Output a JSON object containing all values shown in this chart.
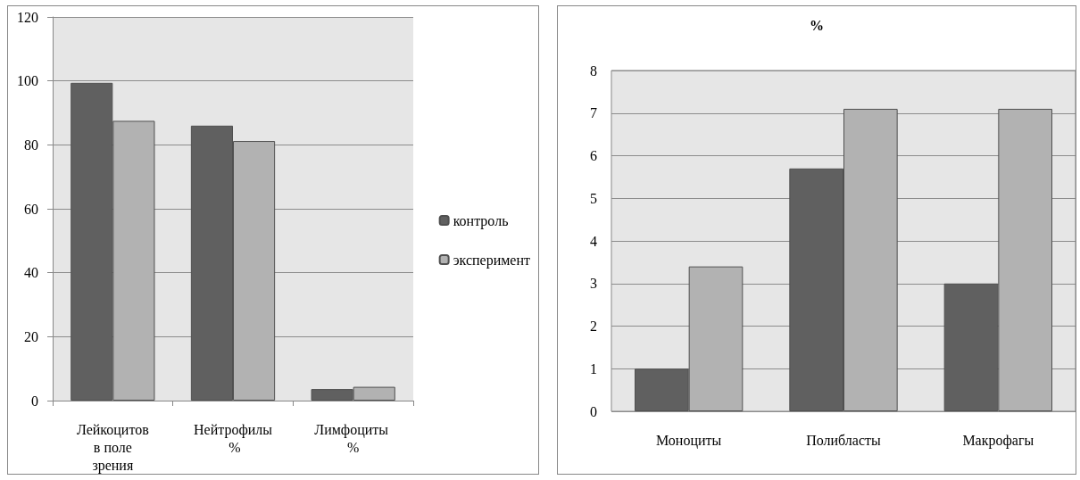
{
  "chart_data": [
    {
      "type": "bar",
      "categories": [
        "Лейкоцитов в поле зрения",
        "Нейтрофилы %",
        "Лимфоциты %"
      ],
      "series": [
        {
          "name": "контроль",
          "color": "#606060",
          "values": [
            99.4,
            86,
            3.6
          ]
        },
        {
          "name": "эксперимент",
          "color": "#b2b2b2",
          "values": [
            87.5,
            81.2,
            4.3
          ]
        }
      ],
      "ylim": [
        0,
        120
      ],
      "yticks": [
        0,
        20,
        40,
        60,
        80,
        100,
        120
      ],
      "grid": "y",
      "legend": "right"
    },
    {
      "type": "bar",
      "title": "%",
      "categories": [
        "Моноциты",
        "Полибласты",
        "Макрофагы"
      ],
      "series": [
        {
          "color": "#606060",
          "values": [
            1,
            5.7,
            3
          ]
        },
        {
          "color": "#b2b2b2",
          "values": [
            3.4,
            7.1,
            7.1
          ]
        }
      ],
      "ylim": [
        0,
        8
      ],
      "yticks": [
        0,
        1,
        2,
        3,
        4,
        5,
        6,
        7,
        8
      ],
      "grid": "y"
    }
  ]
}
